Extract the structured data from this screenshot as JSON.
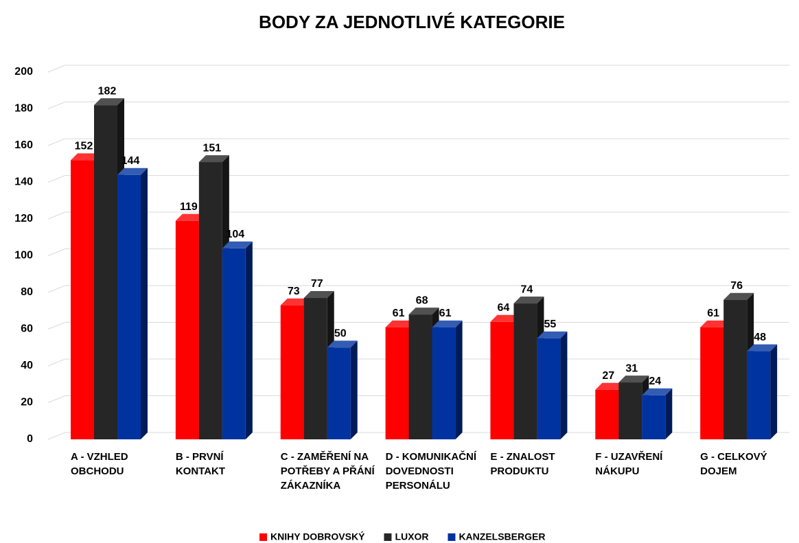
{
  "chart_data": {
    "type": "bar",
    "title": "BODY ZA JEDNOTLIVÉ KATEGORIE",
    "categories": [
      "A - VZHLED OBCHODU",
      "B - PRVNÍ KONTAKT",
      "C - ZAMĚŘENÍ NA POTŘEBY A PŘÁNÍ ZÁKAZNÍKA",
      "D - KOMUNIKAČNÍ DOVEDNOSTI PERSONÁLU",
      "E - ZNALOST PRODUKTU",
      "F - UZAVŘENÍ NÁKUPU",
      "G - CELKOVÝ DOJEM"
    ],
    "series": [
      {
        "name": "KNIHY DOBROVSKÝ",
        "color": "#ff0000",
        "values": [
          152,
          119,
          73,
          61,
          64,
          27,
          61
        ]
      },
      {
        "name": "LUXOR",
        "color": "#262626",
        "values": [
          182,
          151,
          77,
          68,
          74,
          31,
          76
        ]
      },
      {
        "name": "KANZELSBERGER",
        "color": "#0033a0",
        "values": [
          144,
          104,
          50,
          61,
          55,
          24,
          48
        ]
      }
    ],
    "ylim": [
      0,
      200
    ],
    "yticks": [
      0,
      20,
      40,
      60,
      80,
      100,
      120,
      140,
      160,
      180,
      200
    ],
    "grid": true,
    "legend": "bottom"
  }
}
